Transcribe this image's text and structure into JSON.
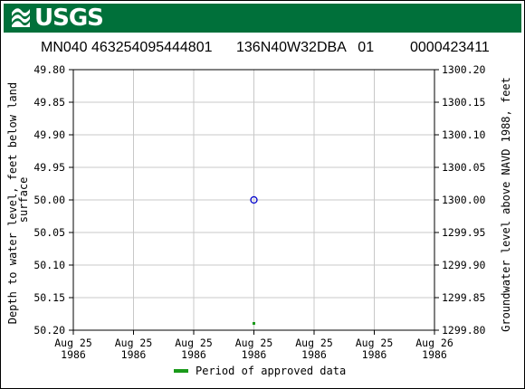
{
  "header": {
    "agency": "USGS",
    "site_number": "MN040 463254095444801",
    "station_name": "136N40W32DBA   01",
    "local_id": "0000423411"
  },
  "chart_data": {
    "type": "scatter",
    "xlabel": "",
    "ylabel_left": "Depth to water level, feet below land surface",
    "ylabel_right": "Groundwater level above NAVD 1988, feet",
    "ylim_left": [
      49.8,
      50.2
    ],
    "ylim_right": [
      1300.2,
      1299.8
    ],
    "left_axis_inverted": true,
    "grid": true,
    "left_ticks": [
      "49.80",
      "49.85",
      "49.90",
      "49.95",
      "50.00",
      "50.05",
      "50.10",
      "50.15",
      "50.20"
    ],
    "right_ticks": [
      "1300.20",
      "1300.15",
      "1300.10",
      "1300.05",
      "1300.00",
      "1299.95",
      "1299.90",
      "1299.85",
      "1299.80"
    ],
    "x_ticks": [
      {
        "line1": "Aug 25",
        "line2": "1986"
      },
      {
        "line1": "Aug 25",
        "line2": "1986"
      },
      {
        "line1": "Aug 25",
        "line2": "1986"
      },
      {
        "line1": "Aug 25",
        "line2": "1986"
      },
      {
        "line1": "Aug 25",
        "line2": "1986"
      },
      {
        "line1": "Aug 25",
        "line2": "1986"
      },
      {
        "line1": "Aug 26",
        "line2": "1986"
      }
    ],
    "series": [
      {
        "marker": "open-circle",
        "color": "#0000cc",
        "points": [
          {
            "x": "1986-08-25T12:00",
            "y": 50.0
          }
        ]
      }
    ],
    "approved_period": {
      "x": "1986-08-25T12:00",
      "color": "#1a9a1a"
    },
    "legend": [
      {
        "label": "Period of approved data",
        "color": "#1a9a1a"
      }
    ]
  }
}
